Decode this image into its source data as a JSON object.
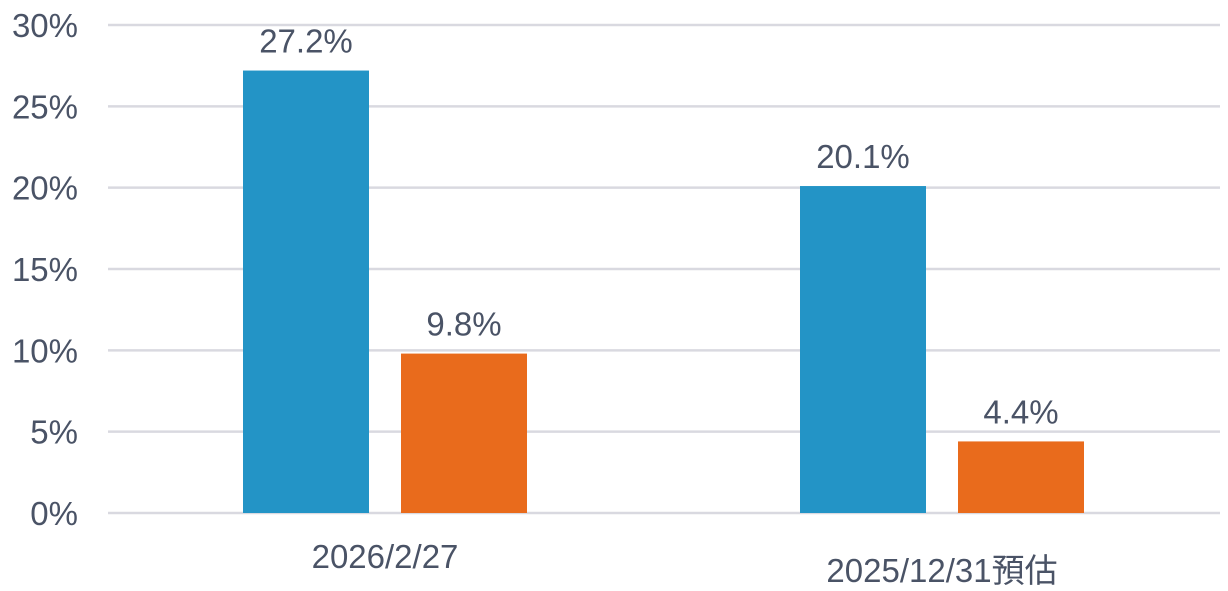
{
  "chart_data": {
    "type": "bar",
    "categories": [
      "2026/2/27",
      "2025/12/31預估"
    ],
    "series": [
      {
        "values": [
          27.2,
          20.1
        ],
        "color": "#2394c6"
      },
      {
        "values": [
          9.8,
          4.4
        ],
        "color": "#e96b1c"
      }
    ],
    "data_labels": [
      [
        "27.2%",
        "20.1%"
      ],
      [
        "9.8%",
        "4.4%"
      ]
    ],
    "y_ticks": [
      0,
      5,
      10,
      15,
      20,
      25,
      30
    ],
    "y_tick_labels": [
      "0%",
      "5%",
      "10%",
      "15%",
      "20%",
      "25%",
      "30%"
    ],
    "ylim": [
      0,
      30
    ],
    "grid": true,
    "legend": "none",
    "title": "",
    "xlabel": "",
    "ylabel": "",
    "grid_color": "#d9d9e0",
    "text_color": "#4a5366"
  }
}
